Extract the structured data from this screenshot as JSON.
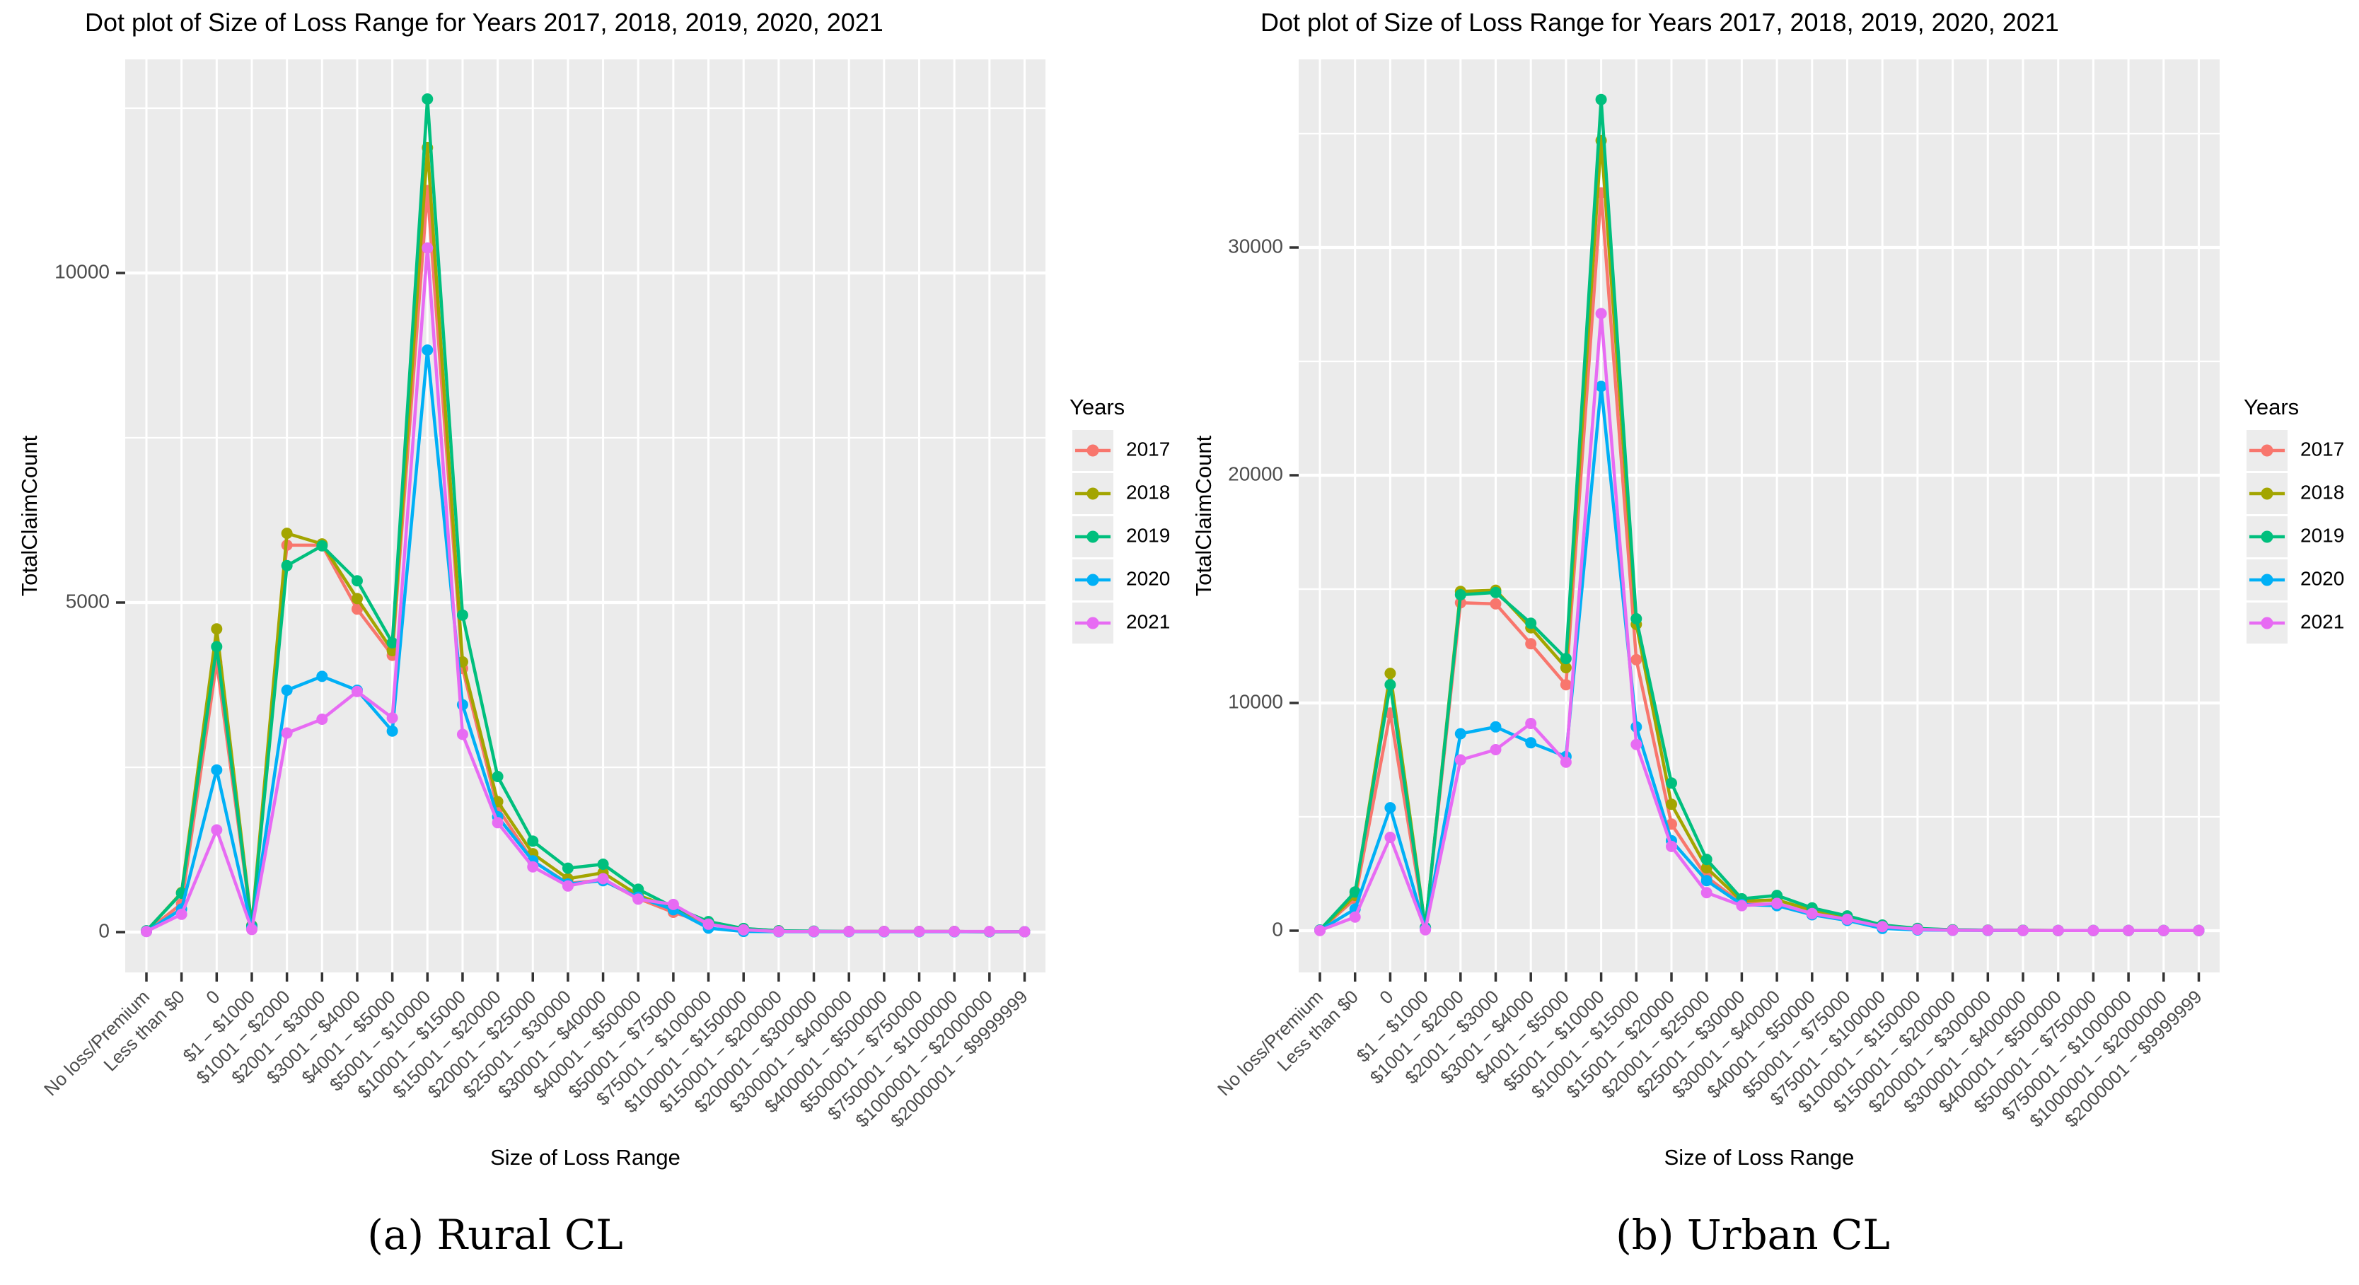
{
  "figure": {
    "captions": [
      "(a) Rural CL",
      "(b) Urban CL"
    ]
  },
  "colors": {
    "y2017": "#F8766D",
    "y2018": "#A3A500",
    "y2019": "#00BF7D",
    "y2020": "#00B0F6",
    "y2021": "#E76BF3",
    "panel_bg": "#EBEBEB",
    "grid": "#FFFFFF",
    "axis_text": "#4D4D4D",
    "tick": "#333333",
    "legend_key_bg": "#ECECEC"
  },
  "chart_data": [
    {
      "type": "line",
      "title": "Dot plot of Size of Loss Range for Years 2017, 2018, 2019, 2020, 2021",
      "xlabel": "Size of Loss Range",
      "ylabel": "TotalClaimCount",
      "legend": {
        "title": "Years",
        "position": "right",
        "entries": [
          "2017",
          "2018",
          "2019",
          "2020",
          "2021"
        ]
      },
      "ylim": [
        0,
        13000
      ],
      "yticks": [
        0,
        5000,
        10000
      ],
      "ytick_labels": [
        "0",
        "5000",
        "10000"
      ],
      "yticks_minor": [
        2500,
        7500,
        12500
      ],
      "grid": true,
      "categories": [
        "No loss/Premium",
        "Less than $0",
        "0",
        "$1 − $1000",
        "$1001 − $2000",
        "$2001 − $3000",
        "$3001 − $4000",
        "$4001 − $5000",
        "$5001 − $10000",
        "$10001 − $15000",
        "$15001 − $20000",
        "$20001 − $25000",
        "$25001 − $30000",
        "$30001 − $40000",
        "$40001 − $50000",
        "$50001 − $75000",
        "$75001 − $100000",
        "$100001 − $150000",
        "$150001 − $200000",
        "$200001 − $300000",
        "$300001 − $400000",
        "$400001 − $500000",
        "$500001 − $750000",
        "$750001 − $1000000",
        "$1000001 − $2000000",
        "$2000001 − $9999999"
      ],
      "series": [
        {
          "name": "2017",
          "color": "#F8766D",
          "values": [
            10,
            430,
            4100,
            90,
            5870,
            5870,
            4900,
            4200,
            11250,
            4000,
            1880,
            1080,
            740,
            790,
            510,
            300,
            130,
            40,
            15,
            10,
            10,
            10,
            10,
            10,
            5,
            5
          ]
        },
        {
          "name": "2018",
          "color": "#A3A500",
          "values": [
            15,
            600,
            4600,
            100,
            6050,
            5890,
            5060,
            4270,
            11900,
            4100,
            1980,
            1190,
            810,
            900,
            560,
            360,
            150,
            50,
            20,
            10,
            10,
            10,
            10,
            10,
            5,
            5
          ]
        },
        {
          "name": "2019",
          "color": "#00BF7D",
          "values": [
            20,
            590,
            4330,
            95,
            5560,
            5860,
            5330,
            4390,
            12640,
            4810,
            2360,
            1380,
            970,
            1030,
            650,
            380,
            160,
            55,
            20,
            15,
            10,
            10,
            10,
            10,
            5,
            5
          ]
        },
        {
          "name": "2020",
          "color": "#00B0F6",
          "values": [
            10,
            350,
            2460,
            60,
            3670,
            3880,
            3670,
            3050,
            8830,
            3450,
            1750,
            1080,
            730,
            780,
            530,
            340,
            60,
            10,
            5,
            5,
            5,
            5,
            5,
            5,
            5,
            5
          ]
        },
        {
          "name": "2021",
          "color": "#E76BF3",
          "values": [
            10,
            270,
            1550,
            40,
            3020,
            3230,
            3650,
            3250,
            10380,
            3000,
            1660,
            990,
            700,
            810,
            500,
            420,
            120,
            35,
            10,
            10,
            10,
            10,
            10,
            10,
            10,
            5
          ]
        }
      ]
    },
    {
      "type": "line",
      "title": "Dot plot of Size of Loss Range for Years 2017, 2018, 2019, 2020, 2021",
      "xlabel": "Size of Loss Range",
      "ylabel": "TotalClaimCount",
      "legend": {
        "title": "Years",
        "position": "right",
        "entries": [
          "2017",
          "2018",
          "2019",
          "2020",
          "2021"
        ]
      },
      "ylim": [
        0,
        38000
      ],
      "yticks": [
        0,
        10000,
        20000,
        30000
      ],
      "ytick_labels": [
        "0",
        "10000",
        "20000",
        "30000"
      ],
      "yticks_minor": [
        5000,
        15000,
        25000,
        35000
      ],
      "grid": true,
      "categories": [
        "No loss/Premium",
        "Less than $0",
        "0",
        "$1 − $1000",
        "$1001 − $2000",
        "$2001 − $3000",
        "$3001 − $4000",
        "$4001 − $5000",
        "$5001 − $10000",
        "$10001 − $15000",
        "$15001 − $20000",
        "$20001 − $25000",
        "$25001 − $30000",
        "$30001 − $40000",
        "$40001 − $50000",
        "$50001 − $75000",
        "$75001 − $100000",
        "$100001 − $150000",
        "$150001 − $200000",
        "$200001 − $300000",
        "$300001 − $400000",
        "$400001 − $500000",
        "$500001 − $750000",
        "$750001 − $1000000",
        "$1000001 − $2000000",
        "$2000001 − $9999999"
      ],
      "series": [
        {
          "name": "2017",
          "color": "#F8766D",
          "values": [
            20,
            1400,
            9560,
            120,
            14400,
            14350,
            12600,
            10800,
            32400,
            11900,
            4680,
            2360,
            1200,
            1150,
            800,
            550,
            200,
            80,
            30,
            20,
            15,
            10,
            10,
            10,
            10,
            10
          ]
        },
        {
          "name": "2018",
          "color": "#A3A500",
          "values": [
            25,
            1550,
            11300,
            130,
            14900,
            14950,
            13300,
            11550,
            34700,
            13450,
            5550,
            2760,
            1300,
            1350,
            900,
            600,
            230,
            90,
            35,
            20,
            15,
            10,
            10,
            10,
            10,
            10
          ]
        },
        {
          "name": "2019",
          "color": "#00BF7D",
          "values": [
            30,
            1700,
            10800,
            140,
            14750,
            14850,
            13500,
            11950,
            36500,
            13700,
            6480,
            3130,
            1400,
            1550,
            1000,
            650,
            250,
            100,
            40,
            25,
            15,
            10,
            10,
            10,
            10,
            10
          ]
        },
        {
          "name": "2020",
          "color": "#00B0F6",
          "values": [
            15,
            950,
            5400,
            70,
            8650,
            8950,
            8250,
            7650,
            23900,
            8950,
            3950,
            2200,
            1150,
            1100,
            700,
            450,
            100,
            30,
            15,
            10,
            10,
            10,
            10,
            10,
            10,
            10
          ]
        },
        {
          "name": "2021",
          "color": "#E76BF3",
          "values": [
            10,
            600,
            4100,
            40,
            7500,
            7950,
            9100,
            7400,
            27100,
            8180,
            3700,
            1670,
            1100,
            1200,
            750,
            500,
            180,
            60,
            20,
            15,
            10,
            10,
            10,
            10,
            10,
            10
          ]
        }
      ]
    }
  ]
}
